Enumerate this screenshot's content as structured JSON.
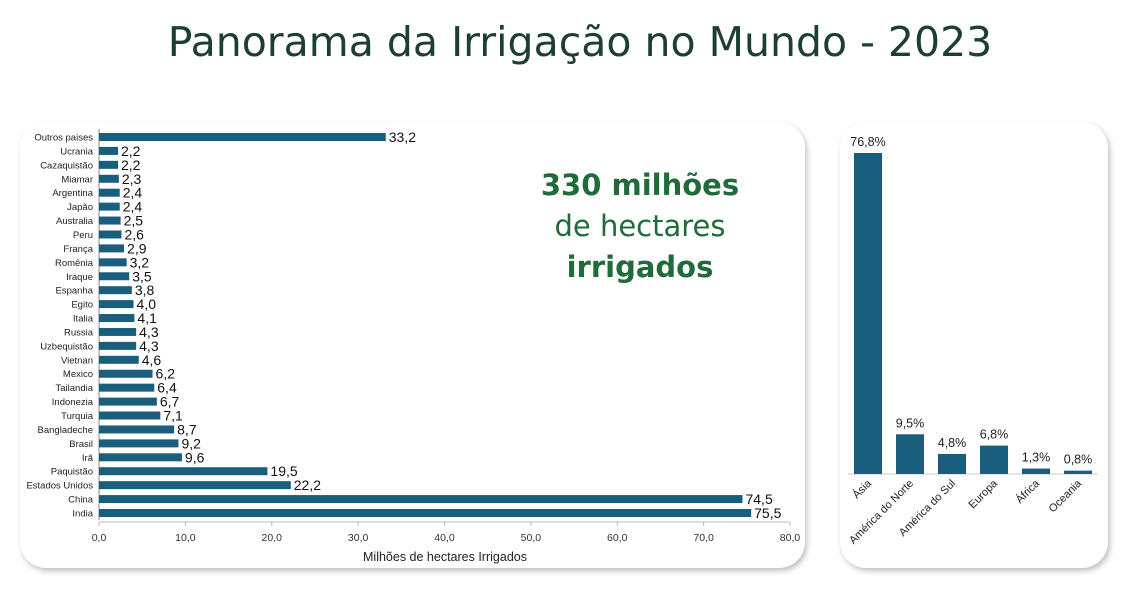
{
  "title": "Panorama da Irrigação no Mundo - 2023",
  "callout": {
    "line1": "330 milhões",
    "line2": "de hectares",
    "line3": "irrigados"
  },
  "colors": {
    "bar": "#1a5e7e",
    "title": "#1d3f33",
    "callout": "#1f6b3a"
  },
  "chart_data": [
    {
      "type": "bar",
      "orientation": "horizontal",
      "xlabel": "Milhões de hectares Irrigados",
      "xlim": [
        0,
        80
      ],
      "xticks": [
        "0,0",
        "10,0",
        "20,0",
        "30,0",
        "40,0",
        "50,0",
        "60,0",
        "70,0",
        "80,0"
      ],
      "categories": [
        "Outros paises",
        "Ucrania",
        "Cazaquistão",
        "Miamar",
        "Argentina",
        "Japão",
        "Australia",
        "Peru",
        "França",
        "Romênia",
        "Iraque",
        "Espanha",
        "Egito",
        "Italia",
        "Russia",
        "Uzbequistão",
        "Vietnan",
        "Mexico",
        "Tailandia",
        "Indonezia",
        "Turquia",
        "Bangladeche",
        "Brasil",
        "Irã",
        "Paquistão",
        "Estados Unidos",
        "China",
        "India"
      ],
      "values": [
        33.2,
        2.2,
        2.2,
        2.3,
        2.4,
        2.4,
        2.5,
        2.6,
        2.9,
        3.2,
        3.5,
        3.8,
        4.0,
        4.1,
        4.3,
        4.3,
        4.6,
        6.2,
        6.4,
        6.7,
        7.1,
        8.7,
        9.2,
        9.6,
        19.5,
        22.2,
        74.5,
        75.5
      ],
      "labels": [
        "33,2",
        "2,2",
        "2,2",
        "2,3",
        "2,4",
        "2,4",
        "2,5",
        "2,6",
        "2,9",
        "3,2",
        "3,5",
        "3,8",
        "4,0",
        "4,1",
        "4,3",
        "4,3",
        "4,6",
        "6,2",
        "6,4",
        "6,7",
        "7,1",
        "8,7",
        "9,2",
        "9,6",
        "19,5",
        "22,2",
        "74,5",
        "75,5"
      ]
    },
    {
      "type": "bar",
      "orientation": "vertical",
      "categories": [
        "Ásia",
        "América do Norte",
        "América do Sul",
        "Europa",
        "África",
        "Oceania"
      ],
      "values": [
        76.8,
        9.5,
        4.8,
        6.8,
        1.3,
        0.8
      ],
      "labels": [
        "76,8%",
        "9,5%",
        "4,8%",
        "6,8%",
        "1,3%",
        "0,8%"
      ],
      "unit": "%"
    }
  ]
}
